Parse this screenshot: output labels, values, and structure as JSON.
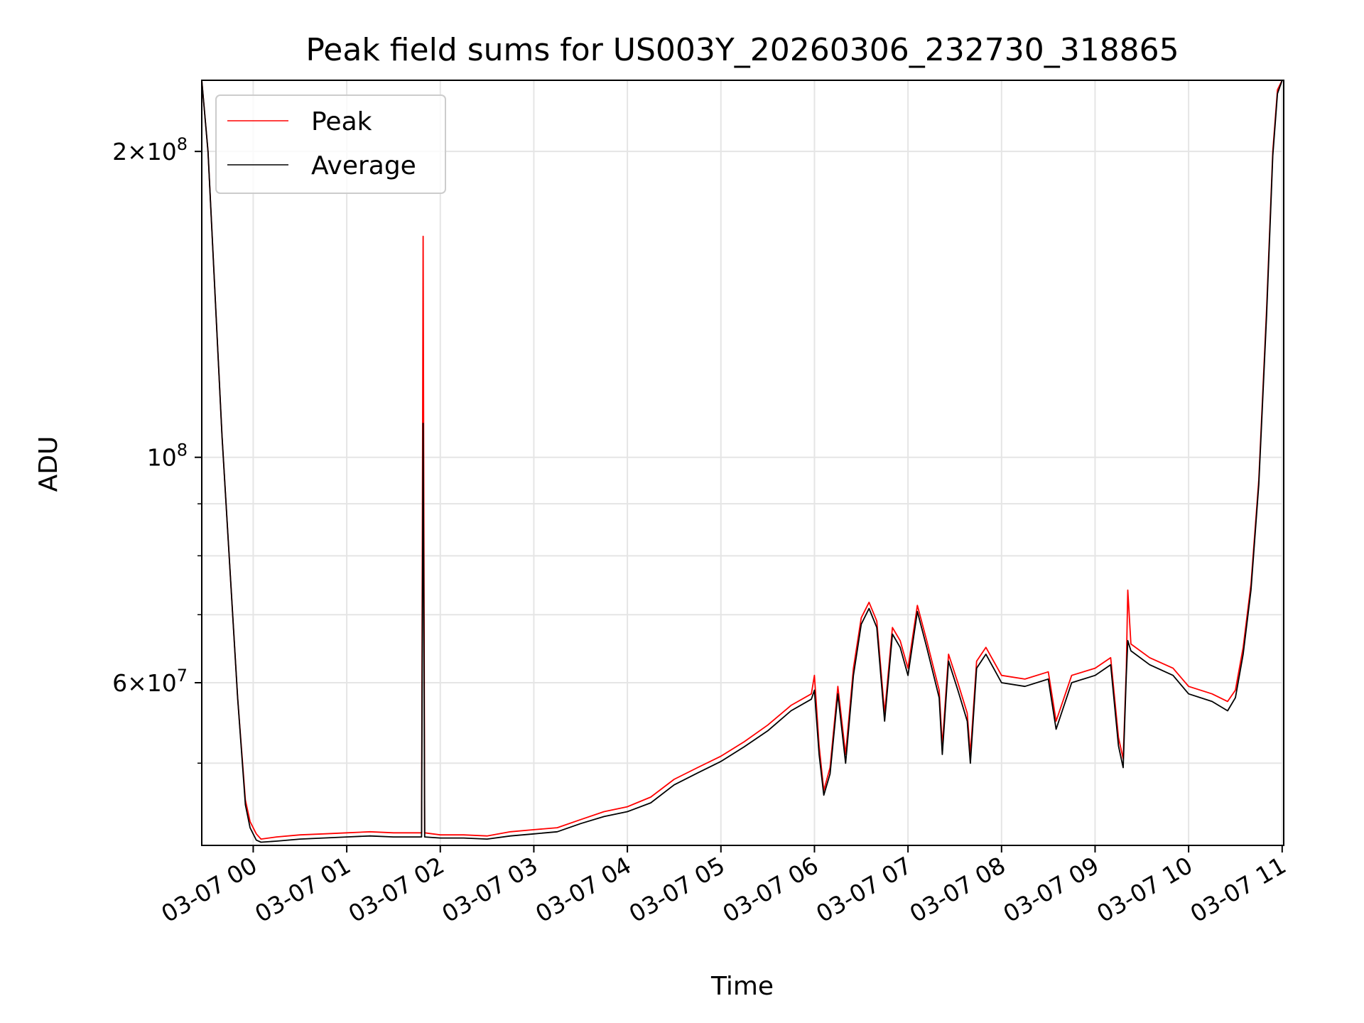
{
  "chart_data": {
    "type": "line",
    "title": "Peak field sums for US003Y_20260306_232730_318865",
    "xlabel": "Time",
    "ylabel": "ADU",
    "y_scale": "log",
    "xlim": [
      "2026-03-06 23:27",
      "2026-03-07 11:01"
    ],
    "ylim": [
      41500000,
      235000000
    ],
    "grid": true,
    "legend": "upper-left",
    "x_ticks": [
      {
        "value": "2026-03-07 00:00",
        "label": "03-07 00"
      },
      {
        "value": "2026-03-07 01:00",
        "label": "03-07 01"
      },
      {
        "value": "2026-03-07 02:00",
        "label": "03-07 02"
      },
      {
        "value": "2026-03-07 03:00",
        "label": "03-07 03"
      },
      {
        "value": "2026-03-07 04:00",
        "label": "03-07 04"
      },
      {
        "value": "2026-03-07 05:00",
        "label": "03-07 05"
      },
      {
        "value": "2026-03-07 06:00",
        "label": "03-07 06"
      },
      {
        "value": "2026-03-07 07:00",
        "label": "03-07 07"
      },
      {
        "value": "2026-03-07 08:00",
        "label": "03-07 08"
      },
      {
        "value": "2026-03-07 09:00",
        "label": "03-07 09"
      },
      {
        "value": "2026-03-07 10:00",
        "label": "03-07 10"
      },
      {
        "value": "2026-03-07 11:00",
        "label": "03-07 11"
      }
    ],
    "y_ticks_major": [
      {
        "value": 60000000,
        "base": "6",
        "exp": "7"
      },
      {
        "value": 100000000,
        "base": "",
        "exp": "8"
      },
      {
        "value": 200000000,
        "base": "2",
        "exp": "8"
      }
    ],
    "y_ticks_minor": [
      50000000,
      70000000,
      80000000,
      90000000
    ],
    "series": [
      {
        "name": "Peak",
        "color": "#ff0000",
        "points": [
          [
            "2026-03-06 23:27",
            235000000
          ],
          [
            "2026-03-06 23:31",
            200000000
          ],
          [
            "2026-03-06 23:35",
            150000000
          ],
          [
            "2026-03-06 23:40",
            105000000
          ],
          [
            "2026-03-06 23:45",
            78000000
          ],
          [
            "2026-03-06 23:50",
            58000000
          ],
          [
            "2026-03-06 23:55",
            46000000
          ],
          [
            "2026-03-06 23:58",
            43800000
          ],
          [
            "2026-03-07 00:02",
            42600000
          ],
          [
            "2026-03-07 00:05",
            42100000
          ],
          [
            "2026-03-07 00:15",
            42300000
          ],
          [
            "2026-03-07 00:30",
            42500000
          ],
          [
            "2026-03-07 00:45",
            42600000
          ],
          [
            "2026-03-07 01:00",
            42700000
          ],
          [
            "2026-03-07 01:15",
            42800000
          ],
          [
            "2026-03-07 01:30",
            42700000
          ],
          [
            "2026-03-07 01:48",
            42700000
          ],
          [
            "2026-03-07 01:49",
            165000000
          ],
          [
            "2026-03-07 01:50",
            42700000
          ],
          [
            "2026-03-07 02:00",
            42500000
          ],
          [
            "2026-03-07 02:15",
            42500000
          ],
          [
            "2026-03-07 02:30",
            42400000
          ],
          [
            "2026-03-07 02:45",
            42800000
          ],
          [
            "2026-03-07 03:00",
            43000000
          ],
          [
            "2026-03-07 03:15",
            43200000
          ],
          [
            "2026-03-07 03:30",
            44000000
          ],
          [
            "2026-03-07 03:45",
            44800000
          ],
          [
            "2026-03-07 04:00",
            45300000
          ],
          [
            "2026-03-07 04:15",
            46300000
          ],
          [
            "2026-03-07 04:30",
            48200000
          ],
          [
            "2026-03-07 04:45",
            49500000
          ],
          [
            "2026-03-07 05:00",
            50800000
          ],
          [
            "2026-03-07 05:15",
            52500000
          ],
          [
            "2026-03-07 05:30",
            54500000
          ],
          [
            "2026-03-07 05:45",
            57000000
          ],
          [
            "2026-03-07 05:58",
            58500000
          ],
          [
            "2026-03-07 06:00",
            61000000
          ],
          [
            "2026-03-07 06:03",
            52000000
          ],
          [
            "2026-03-07 06:06",
            47000000
          ],
          [
            "2026-03-07 06:10",
            49500000
          ],
          [
            "2026-03-07 06:15",
            59500000
          ],
          [
            "2026-03-07 06:20",
            51000000
          ],
          [
            "2026-03-07 06:25",
            62000000
          ],
          [
            "2026-03-07 06:30",
            69500000
          ],
          [
            "2026-03-07 06:35",
            72000000
          ],
          [
            "2026-03-07 06:40",
            69000000
          ],
          [
            "2026-03-07 06:45",
            56000000
          ],
          [
            "2026-03-07 06:50",
            68000000
          ],
          [
            "2026-03-07 06:55",
            66000000
          ],
          [
            "2026-03-07 07:00",
            62000000
          ],
          [
            "2026-03-07 07:06",
            71500000
          ],
          [
            "2026-03-07 07:12",
            66000000
          ],
          [
            "2026-03-07 07:20",
            59000000
          ],
          [
            "2026-03-07 07:22",
            52000000
          ],
          [
            "2026-03-07 07:26",
            64000000
          ],
          [
            "2026-03-07 07:32",
            60000000
          ],
          [
            "2026-03-07 07:38",
            56000000
          ],
          [
            "2026-03-07 07:40",
            51000000
          ],
          [
            "2026-03-07 07:44",
            63000000
          ],
          [
            "2026-03-07 07:50",
            65000000
          ],
          [
            "2026-03-07 08:00",
            61000000
          ],
          [
            "2026-03-07 08:15",
            60500000
          ],
          [
            "2026-03-07 08:30",
            61500000
          ],
          [
            "2026-03-07 08:35",
            55000000
          ],
          [
            "2026-03-07 08:45",
            61000000
          ],
          [
            "2026-03-07 09:00",
            62000000
          ],
          [
            "2026-03-07 09:10",
            63500000
          ],
          [
            "2026-03-07 09:15",
            53000000
          ],
          [
            "2026-03-07 09:18",
            50500000
          ],
          [
            "2026-03-07 09:20",
            62000000
          ],
          [
            "2026-03-07 09:21",
            74000000
          ],
          [
            "2026-03-07 09:23",
            65500000
          ],
          [
            "2026-03-07 09:35",
            63500000
          ],
          [
            "2026-03-07 09:50",
            62000000
          ],
          [
            "2026-03-07 10:00",
            59500000
          ],
          [
            "2026-03-07 10:15",
            58500000
          ],
          [
            "2026-03-07 10:25",
            57500000
          ],
          [
            "2026-03-07 10:30",
            59000000
          ],
          [
            "2026-03-07 10:35",
            65000000
          ],
          [
            "2026-03-07 10:40",
            75000000
          ],
          [
            "2026-03-07 10:45",
            95000000
          ],
          [
            "2026-03-07 10:50",
            140000000
          ],
          [
            "2026-03-07 10:54",
            200000000
          ],
          [
            "2026-03-07 10:57",
            230000000
          ],
          [
            "2026-03-07 11:00",
            235000000
          ]
        ]
      },
      {
        "name": "Average",
        "color": "#000000",
        "points": [
          [
            "2026-03-06 23:27",
            235000000
          ],
          [
            "2026-03-06 23:31",
            200000000
          ],
          [
            "2026-03-06 23:35",
            150000000
          ],
          [
            "2026-03-06 23:40",
            105000000
          ],
          [
            "2026-03-06 23:45",
            78000000
          ],
          [
            "2026-03-06 23:50",
            58000000
          ],
          [
            "2026-03-06 23:55",
            45500000
          ],
          [
            "2026-03-06 23:58",
            43200000
          ],
          [
            "2026-03-07 00:02",
            42000000
          ],
          [
            "2026-03-07 00:05",
            41800000
          ],
          [
            "2026-03-07 00:15",
            41900000
          ],
          [
            "2026-03-07 00:30",
            42100000
          ],
          [
            "2026-03-07 00:45",
            42200000
          ],
          [
            "2026-03-07 01:00",
            42300000
          ],
          [
            "2026-03-07 01:15",
            42400000
          ],
          [
            "2026-03-07 01:30",
            42300000
          ],
          [
            "2026-03-07 01:48",
            42300000
          ],
          [
            "2026-03-07 01:49",
            108000000
          ],
          [
            "2026-03-07 01:50",
            42300000
          ],
          [
            "2026-03-07 02:00",
            42200000
          ],
          [
            "2026-03-07 02:15",
            42200000
          ],
          [
            "2026-03-07 02:30",
            42100000
          ],
          [
            "2026-03-07 02:45",
            42400000
          ],
          [
            "2026-03-07 03:00",
            42600000
          ],
          [
            "2026-03-07 03:15",
            42800000
          ],
          [
            "2026-03-07 03:30",
            43600000
          ],
          [
            "2026-03-07 03:45",
            44300000
          ],
          [
            "2026-03-07 04:00",
            44800000
          ],
          [
            "2026-03-07 04:15",
            45700000
          ],
          [
            "2026-03-07 04:30",
            47600000
          ],
          [
            "2026-03-07 04:45",
            48900000
          ],
          [
            "2026-03-07 05:00",
            50200000
          ],
          [
            "2026-03-07 05:15",
            51900000
          ],
          [
            "2026-03-07 05:30",
            53800000
          ],
          [
            "2026-03-07 05:45",
            56300000
          ],
          [
            "2026-03-07 05:58",
            57800000
          ],
          [
            "2026-03-07 06:00",
            59000000
          ],
          [
            "2026-03-07 06:03",
            51000000
          ],
          [
            "2026-03-07 06:06",
            46500000
          ],
          [
            "2026-03-07 06:10",
            48800000
          ],
          [
            "2026-03-07 06:15",
            58500000
          ],
          [
            "2026-03-07 06:20",
            50000000
          ],
          [
            "2026-03-07 06:25",
            61000000
          ],
          [
            "2026-03-07 06:30",
            68500000
          ],
          [
            "2026-03-07 06:35",
            71000000
          ],
          [
            "2026-03-07 06:40",
            68000000
          ],
          [
            "2026-03-07 06:45",
            55000000
          ],
          [
            "2026-03-07 06:50",
            67000000
          ],
          [
            "2026-03-07 06:55",
            65000000
          ],
          [
            "2026-03-07 07:00",
            61000000
          ],
          [
            "2026-03-07 07:06",
            70500000
          ],
          [
            "2026-03-07 07:12",
            65000000
          ],
          [
            "2026-03-07 07:20",
            58000000
          ],
          [
            "2026-03-07 07:22",
            51000000
          ],
          [
            "2026-03-07 07:26",
            63000000
          ],
          [
            "2026-03-07 07:32",
            59000000
          ],
          [
            "2026-03-07 07:38",
            55000000
          ],
          [
            "2026-03-07 07:40",
            50000000
          ],
          [
            "2026-03-07 07:44",
            62000000
          ],
          [
            "2026-03-07 07:50",
            64000000
          ],
          [
            "2026-03-07 08:00",
            60000000
          ],
          [
            "2026-03-07 08:15",
            59500000
          ],
          [
            "2026-03-07 08:30",
            60500000
          ],
          [
            "2026-03-07 08:35",
            54000000
          ],
          [
            "2026-03-07 08:45",
            60000000
          ],
          [
            "2026-03-07 09:00",
            61000000
          ],
          [
            "2026-03-07 09:10",
            62500000
          ],
          [
            "2026-03-07 09:15",
            52000000
          ],
          [
            "2026-03-07 09:18",
            49500000
          ],
          [
            "2026-03-07 09:20",
            61000000
          ],
          [
            "2026-03-07 09:21",
            66000000
          ],
          [
            "2026-03-07 09:23",
            64500000
          ],
          [
            "2026-03-07 09:35",
            62500000
          ],
          [
            "2026-03-07 09:50",
            61000000
          ],
          [
            "2026-03-07 10:00",
            58500000
          ],
          [
            "2026-03-07 10:15",
            57500000
          ],
          [
            "2026-03-07 10:25",
            56300000
          ],
          [
            "2026-03-07 10:30",
            58000000
          ],
          [
            "2026-03-07 10:35",
            64000000
          ],
          [
            "2026-03-07 10:40",
            74000000
          ],
          [
            "2026-03-07 10:45",
            94000000
          ],
          [
            "2026-03-07 10:50",
            138000000
          ],
          [
            "2026-03-07 10:54",
            198000000
          ],
          [
            "2026-03-07 10:57",
            228000000
          ],
          [
            "2026-03-07 11:00",
            235000000
          ]
        ]
      }
    ]
  }
}
